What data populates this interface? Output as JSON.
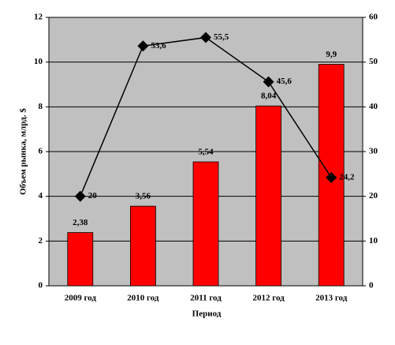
{
  "chart_data": {
    "type": "bar-line",
    "y_label": "Объем рынка, млрд. $",
    "x_label": "Период",
    "categories": [
      "2009 год",
      "2010 год",
      "2011 год",
      "2012 год",
      "2013 год"
    ],
    "series": [
      {
        "type": "bar",
        "color": "#ff0000",
        "values": [
          2.38,
          3.56,
          5.54,
          8.04,
          9.9
        ],
        "value_labels": [
          "2,38",
          "3,56",
          "5,54",
          "8,04",
          "9,9"
        ]
      },
      {
        "type": "line",
        "axis": "y2",
        "color": "#000000",
        "values": [
          20,
          53.6,
          55.5,
          45.6,
          24.2
        ],
        "value_labels": [
          "20",
          "53,6",
          "55,5",
          "45,6",
          "24,2"
        ]
      }
    ],
    "ylim": [
      0,
      12
    ],
    "yticks": [
      0,
      2,
      4,
      6,
      8,
      10,
      12
    ],
    "y2lim": [
      0,
      60
    ],
    "y2ticks": [
      0,
      10,
      20,
      30,
      40,
      50,
      60
    ],
    "grid": true
  }
}
